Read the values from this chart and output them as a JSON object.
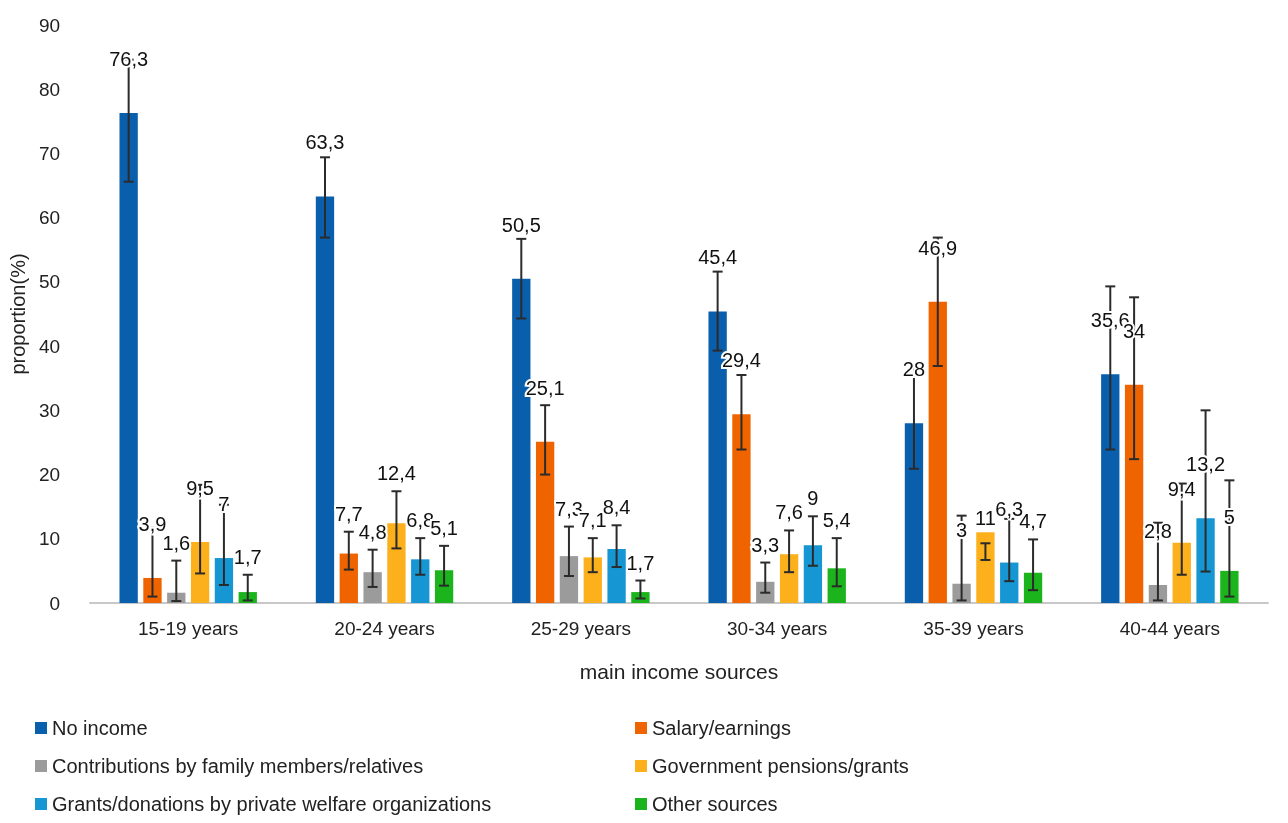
{
  "chart_data": {
    "type": "bar",
    "xlabel": "main income sources",
    "ylabel": "proportion(%)",
    "categories": [
      "15-19 years",
      "20-24 years",
      "25-29 years",
      "30-34 years",
      "35-39 years",
      "40-44 years"
    ],
    "series": [
      {
        "name": "No income",
        "color": "#0a5fad",
        "values": [
          76.3,
          63.3,
          50.5,
          45.4,
          28,
          35.6
        ],
        "value_labels": [
          "76,3",
          "63,3",
          "50,5",
          "45,4",
          "28",
          "35,6"
        ],
        "errors": [
          [
            65.6,
            84.6
          ],
          [
            56.9,
            69.4
          ],
          [
            44.3,
            56.7
          ],
          [
            39.3,
            51.6
          ],
          [
            20.9,
            36.5
          ],
          [
            23.9,
            49.3
          ]
        ]
      },
      {
        "name": "Salary/earnings",
        "color": "#f06400",
        "values": [
          3.9,
          7.7,
          25.1,
          29.4,
          46.9,
          34
        ],
        "value_labels": [
          "3,9",
          "7,7",
          "25,1",
          "29,4",
          "46,9",
          "34"
        ],
        "errors": [
          [
            1.0,
            11.7
          ],
          [
            5.2,
            11.1
          ],
          [
            20.0,
            30.8
          ],
          [
            23.9,
            35.5
          ],
          [
            36.9,
            56.9
          ],
          [
            22.4,
            47.6
          ]
        ]
      },
      {
        "name": "Contributions by family members/relatives",
        "color": "#9b9b9b",
        "values": [
          1.6,
          4.8,
          7.3,
          3.3,
          3,
          2.8
        ],
        "value_labels": [
          "1,6",
          "4,8",
          "7,3",
          "3,3",
          "3",
          "2,8"
        ],
        "errors": [
          [
            0.3,
            6.6
          ],
          [
            2.5,
            8.3
          ],
          [
            4.2,
            11.9
          ],
          [
            1.6,
            6.3
          ],
          [
            0.4,
            13.6
          ],
          [
            0.4,
            12.5
          ]
        ]
      },
      {
        "name": "Government pensions/grants",
        "color": "#fbb01c",
        "values": [
          9.5,
          12.4,
          7.1,
          7.6,
          11,
          9.4
        ],
        "value_labels": [
          "9,5",
          "12,4",
          "7,1",
          "7,6",
          "11",
          "9,4"
        ],
        "errors": [
          [
            4.6,
            18.4
          ],
          [
            8.5,
            17.4
          ],
          [
            4.8,
            10.1
          ],
          [
            4.8,
            11.3
          ],
          [
            6.7,
            9.3
          ],
          [
            4.4,
            18.6
          ]
        ]
      },
      {
        "name": "Grants/donations by private welfare organizations",
        "color": "#1696d2",
        "values": [
          7,
          6.8,
          8.4,
          9,
          6.3,
          13.2
        ],
        "value_labels": [
          "7",
          "6,8",
          "8,4",
          "9",
          "6,3",
          "13,2"
        ],
        "errors": [
          [
            2.8,
            15.3
          ],
          [
            4.4,
            10.1
          ],
          [
            5.6,
            12.1
          ],
          [
            5.8,
            13.5
          ],
          [
            3.4,
            13.1
          ],
          [
            4.9,
            30.0
          ]
        ]
      },
      {
        "name": "Other sources",
        "color": "#1cb41c",
        "values": [
          1.7,
          5.1,
          1.7,
          5.4,
          4.7,
          5
        ],
        "value_labels": [
          "1,7",
          "5,1",
          "1,7",
          "5,4",
          "4,7",
          "5"
        ],
        "errors": [
          [
            0.4,
            4.4
          ],
          [
            2.7,
            8.9
          ],
          [
            0.7,
            3.5
          ],
          [
            2.6,
            10.1
          ],
          [
            2.0,
            9.9
          ],
          [
            1.0,
            19.1
          ]
        ]
      }
    ],
    "ylim": [
      0,
      90
    ],
    "yticks": [
      0,
      10,
      20,
      30,
      40,
      50,
      60,
      70,
      80,
      90
    ],
    "grid": false,
    "legend": "bottom"
  }
}
